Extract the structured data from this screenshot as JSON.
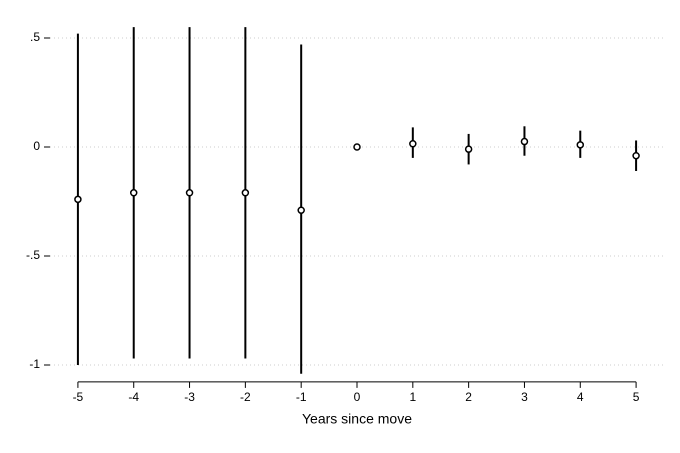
{
  "chart_data": {
    "type": "errorbar",
    "x_label": "Years since move",
    "x": [
      -5,
      -4,
      -3,
      -2,
      -1,
      0,
      1,
      2,
      3,
      4,
      5
    ],
    "values": [
      -0.24,
      -0.21,
      -0.21,
      -0.21,
      -0.29,
      0,
      0.015,
      -0.01,
      0.025,
      0.01,
      -0.04
    ],
    "lower": [
      -1.0,
      -0.97,
      -0.97,
      -0.97,
      -1.04,
      null,
      -0.05,
      -0.08,
      -0.04,
      -0.05,
      -0.11
    ],
    "upper": [
      0.52,
      0.55,
      0.55,
      0.55,
      0.47,
      null,
      0.09,
      0.06,
      0.095,
      0.075,
      0.03
    ],
    "color": "#000000",
    "xlim": [
      -5.5,
      5.5
    ],
    "xticks": [
      -5,
      -4,
      -3,
      -2,
      -1,
      0,
      1,
      2,
      3,
      4,
      5
    ],
    "ylim": [
      -1.05,
      0.55
    ],
    "yticks": [
      {
        "value": 0.5,
        "label": ".5"
      },
      0,
      {
        "value": -0.5,
        "label": "-.5"
      },
      -1
    ],
    "grid": true
  }
}
